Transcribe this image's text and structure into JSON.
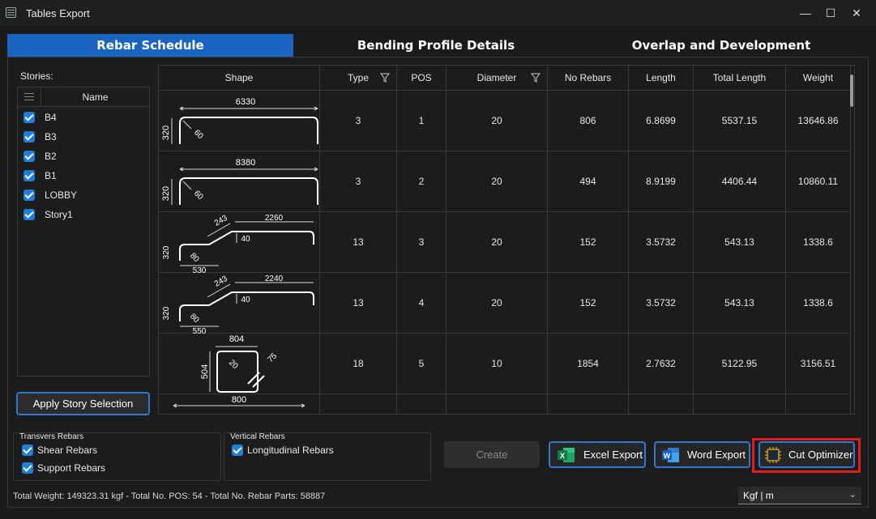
{
  "window": {
    "title": "Tables Export",
    "controls": [
      "—",
      "☐",
      "✕"
    ]
  },
  "tabs": [
    {
      "label": "Rebar Schedule",
      "active": true
    },
    {
      "label": "Bending Profile Details",
      "active": false
    },
    {
      "label": "Overlap and Development",
      "active": false
    }
  ],
  "stories": {
    "label": "Stories:",
    "column": "Name",
    "items": [
      {
        "name": "B4",
        "checked": true
      },
      {
        "name": "B3",
        "checked": true
      },
      {
        "name": "B2",
        "checked": true
      },
      {
        "name": "B1",
        "checked": true
      },
      {
        "name": "LOBBY",
        "checked": true
      },
      {
        "name": "Story1",
        "checked": true
      }
    ],
    "apply_label": "Apply Story Selection"
  },
  "table": {
    "columns": [
      "Shape",
      "Type",
      "POS",
      "Diameter",
      "No Rebars",
      "Length",
      "Total Length",
      "Weight"
    ],
    "filter_columns": [
      "Type",
      "Diameter"
    ],
    "rows": [
      {
        "type": "3",
        "pos": "1",
        "diameter": "20",
        "no_rebars": "806",
        "length": "6.8699",
        "total_length": "5537.15",
        "weight": "13646.86",
        "shape": {
          "kind": "u-hook",
          "dims": [
            "6330",
            "320",
            "60"
          ]
        }
      },
      {
        "type": "3",
        "pos": "2",
        "diameter": "20",
        "no_rebars": "494",
        "length": "8.9199",
        "total_length": "4406.44",
        "weight": "10860.11",
        "shape": {
          "kind": "u-hook",
          "dims": [
            "8380",
            "320",
            "60"
          ]
        }
      },
      {
        "type": "13",
        "pos": "3",
        "diameter": "20",
        "no_rebars": "152",
        "length": "3.5732",
        "total_length": "543.13",
        "weight": "1338.6",
        "shape": {
          "kind": "crank",
          "dims": [
            "243",
            "2260",
            "40",
            "320",
            "80",
            "530"
          ]
        }
      },
      {
        "type": "13",
        "pos": "4",
        "diameter": "20",
        "no_rebars": "152",
        "length": "3.5732",
        "total_length": "543.13",
        "weight": "1338.6",
        "shape": {
          "kind": "crank",
          "dims": [
            "243",
            "2240",
            "40",
            "320",
            "80",
            "550"
          ]
        }
      },
      {
        "type": "18",
        "pos": "5",
        "diameter": "10",
        "no_rebars": "1854",
        "length": "2.7632",
        "total_length": "5122.95",
        "weight": "3156.51",
        "shape": {
          "kind": "stirrup",
          "dims": [
            "804",
            "504",
            "20",
            "75"
          ]
        }
      },
      {
        "type": "",
        "pos": "",
        "diameter": "",
        "no_rebars": "",
        "length": "",
        "total_length": "",
        "weight": "",
        "shape": {
          "kind": "partial",
          "dims": [
            "800"
          ]
        }
      }
    ]
  },
  "transvers": {
    "title": "Transvers Rebars",
    "options": [
      {
        "label": "Shear Rebars",
        "checked": true
      },
      {
        "label": "Support Rebars",
        "checked": true
      }
    ]
  },
  "vertical": {
    "title": "Vertical Rebars",
    "options": [
      {
        "label": "Longitudinal Rebars",
        "checked": true
      }
    ]
  },
  "actions": {
    "create": "Create",
    "excel": "Excel Export",
    "word": "Word Export",
    "cut": "Cut Optimizer"
  },
  "status": "Total Weight: 149323.31 kgf - Total No. POS: 54 - Total No. Rebar Parts: 58887",
  "units": {
    "selected": "Kgf | m"
  },
  "colors": {
    "accent": "#1a64c0",
    "highlight": "#e21b1b",
    "excel": "#1d7a45",
    "word": "#2b5fb3"
  }
}
